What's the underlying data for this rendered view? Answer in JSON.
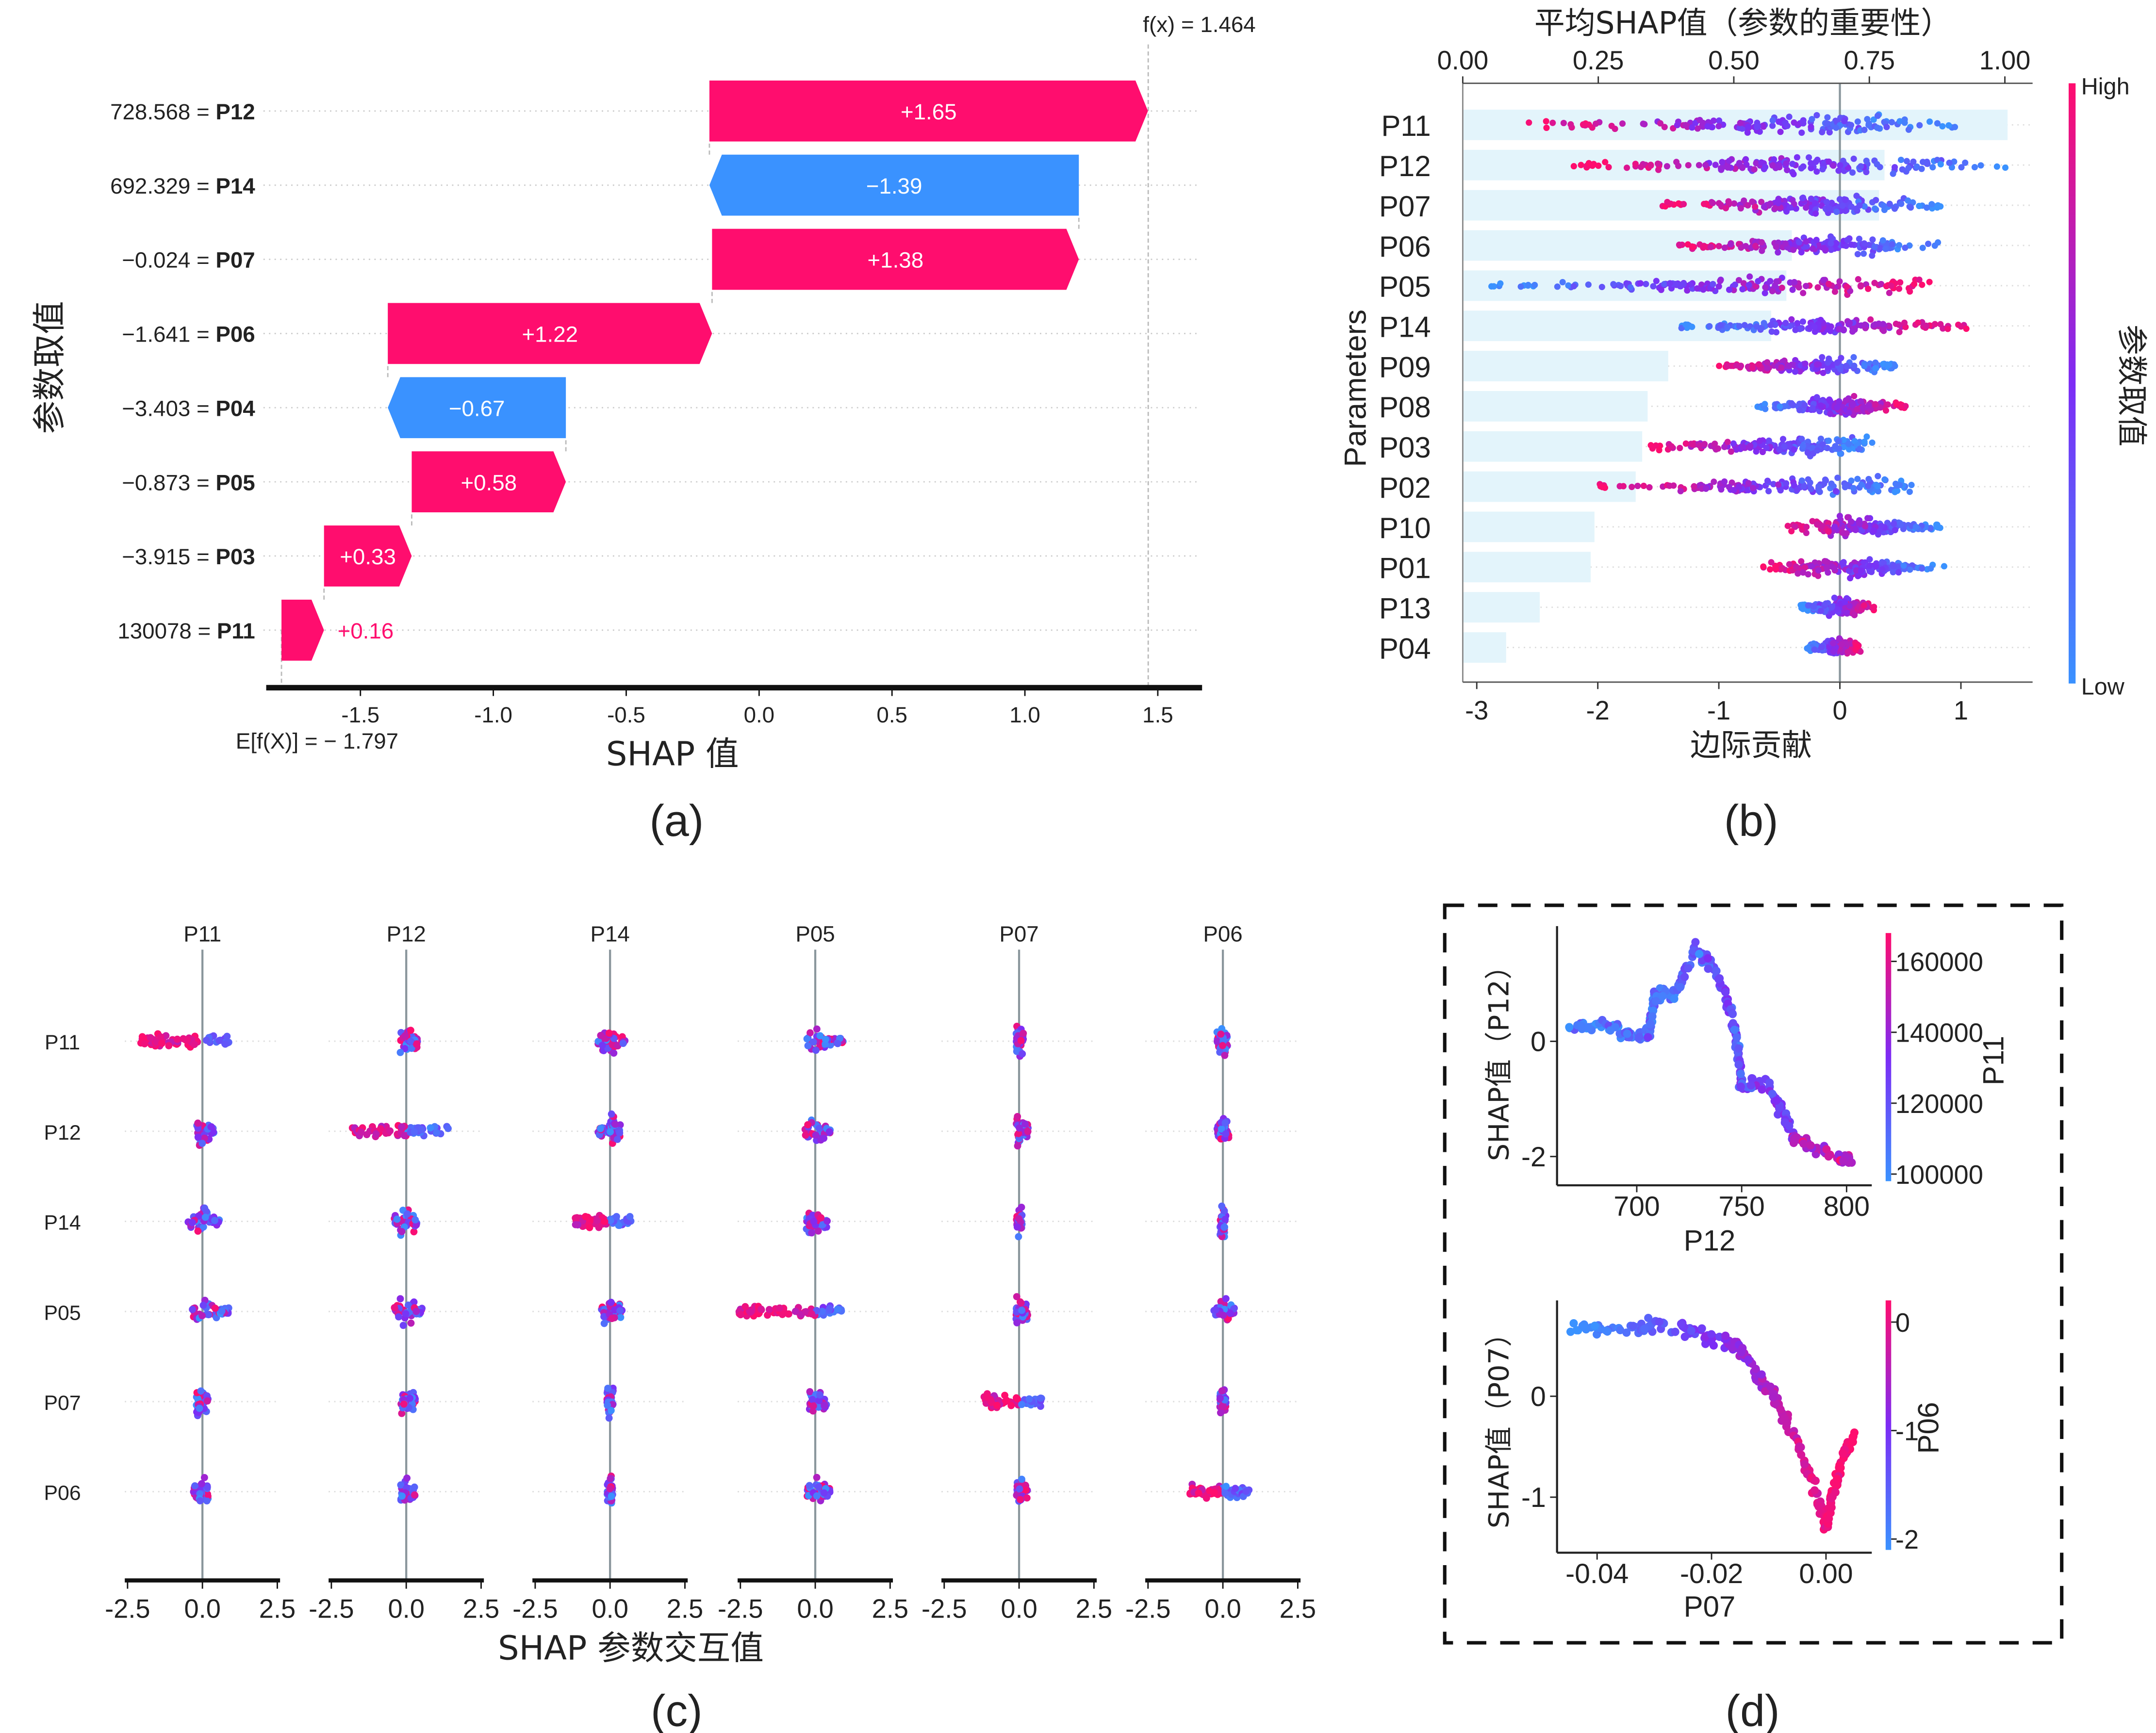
{
  "colors": {
    "positive": "#ff0d6e",
    "negative": "#3a92ff",
    "mid": "#7d2cf5",
    "importance_bar": "#e3f4fb",
    "zero_line": "#8a969c"
  },
  "chart_data": [
    {
      "panel": "(a)",
      "type": "waterfall",
      "ylabel": "参数取值",
      "xlabel": "SHAP 值",
      "x_ticks": [
        "-1.5",
        "-1.0",
        "-0.5",
        "0.0",
        "0.5",
        "1.0",
        "1.5"
      ],
      "xlim": [
        -1.8,
        1.65
      ],
      "base_label": "E[f(X)]  = − 1.797",
      "base_value": -1.797,
      "output_label": "f(x) = 1.464",
      "output_value": 1.464,
      "rows": [
        {
          "feature_value": "728.568 = ",
          "feature": "P12",
          "shap": 1.65,
          "label": "+1.65"
        },
        {
          "feature_value": "692.329 = ",
          "feature": "P14",
          "shap": -1.39,
          "label": "−1.39"
        },
        {
          "feature_value": "−0.024 = ",
          "feature": "P07",
          "shap": 1.38,
          "label": "+1.38"
        },
        {
          "feature_value": "−1.641 = ",
          "feature": "P06",
          "shap": 1.22,
          "label": "+1.22"
        },
        {
          "feature_value": "−3.403 = ",
          "feature": "P04",
          "shap": -0.67,
          "label": "−0.67"
        },
        {
          "feature_value": "−0.873 = ",
          "feature": "P05",
          "shap": 0.58,
          "label": "+0.58"
        },
        {
          "feature_value": "−3.915 = ",
          "feature": "P03",
          "shap": 0.33,
          "label": "+0.33"
        },
        {
          "feature_value": "130078 = ",
          "feature": "P11",
          "shap": 0.16,
          "label": "+0.16"
        }
      ]
    },
    {
      "panel": "(b)",
      "type": "beeswarm+bar",
      "top_title": "平均SHAP值（参数的重要性）",
      "top_ticks": [
        "0.00",
        "0.25",
        "0.50",
        "0.75",
        "1.00"
      ],
      "top_xlim": [
        0,
        1.05
      ],
      "xlabel": "边际贡献",
      "bottom_ticks": [
        "-3",
        "-2",
        "-1",
        "0",
        "1"
      ],
      "bottom_xlim": [
        -3.1,
        1.6
      ],
      "ylabel": "Parameters",
      "colorbar": {
        "high": "High",
        "low": "Low",
        "label": "参数取值"
      },
      "rows": [
        {
          "feature": "P11",
          "mean_abs_shap": 1.005,
          "shap_range": [
            -2.57,
            0.95
          ],
          "high_side": "left"
        },
        {
          "feature": "P12",
          "mean_abs_shap": 0.778,
          "shap_range": [
            -2.22,
            1.39
          ],
          "high_side": "left"
        },
        {
          "feature": "P07",
          "mean_abs_shap": 0.768,
          "shap_range": [
            -1.49,
            0.85
          ],
          "high_side": "left"
        },
        {
          "feature": "P06",
          "mean_abs_shap": 0.607,
          "shap_range": [
            -1.33,
            0.81
          ],
          "high_side": "left"
        },
        {
          "feature": "P05",
          "mean_abs_shap": 0.597,
          "shap_range": [
            -2.9,
            0.74
          ],
          "high_side": "right"
        },
        {
          "feature": "P14",
          "mean_abs_shap": 0.569,
          "shap_range": [
            -1.31,
            1.06
          ],
          "high_side": "right"
        },
        {
          "feature": "P09",
          "mean_abs_shap": 0.379,
          "shap_range": [
            -1.0,
            0.47
          ],
          "high_side": "left"
        },
        {
          "feature": "P08",
          "mean_abs_shap": 0.341,
          "shap_range": [
            -0.7,
            0.58
          ],
          "high_side": "right"
        },
        {
          "feature": "P03",
          "mean_abs_shap": 0.331,
          "shap_range": [
            -1.61,
            0.29
          ],
          "high_side": "left"
        },
        {
          "feature": "P02",
          "mean_abs_shap": 0.319,
          "shap_range": [
            -2.0,
            0.63
          ],
          "high_side": "left"
        },
        {
          "feature": "P10",
          "mean_abs_shap": 0.243,
          "shap_range": [
            -0.44,
            0.87
          ],
          "high_side": "left"
        },
        {
          "feature": "P01",
          "mean_abs_shap": 0.236,
          "shap_range": [
            -0.64,
            0.89
          ],
          "high_side": "left"
        },
        {
          "feature": "P13",
          "mean_abs_shap": 0.142,
          "shap_range": [
            -0.33,
            0.29
          ],
          "high_side": "right"
        },
        {
          "feature": "P04",
          "mean_abs_shap": 0.08,
          "shap_range": [
            -0.28,
            0.17
          ],
          "high_side": "right"
        }
      ]
    },
    {
      "panel": "(c)",
      "type": "interaction-beeswarm-grid",
      "xlabel": "SHAP 参数交互值",
      "x_ticks": [
        "-2.5",
        "0.0",
        "2.5"
      ],
      "xlim": [
        -2.6,
        2.6
      ],
      "columns": [
        "P11",
        "P12",
        "P14",
        "P05",
        "P07",
        "P06"
      ],
      "rows": [
        "P11",
        "P12",
        "P14",
        "P05",
        "P07",
        "P06"
      ],
      "cell_ranges": [
        [
          [
            -2.1,
            0.9
          ],
          [
            -0.2,
            0.4
          ],
          [
            -0.4,
            0.5
          ],
          [
            -0.3,
            1.0
          ],
          [
            -0.1,
            0.15
          ],
          [
            -0.2,
            0.15
          ]
        ],
        [
          [
            -0.2,
            0.4
          ],
          [
            -1.8,
            1.4
          ],
          [
            -0.4,
            0.4
          ],
          [
            -0.4,
            0.5
          ],
          [
            -0.1,
            0.3
          ],
          [
            -0.2,
            0.2
          ]
        ],
        [
          [
            -0.5,
            0.6
          ],
          [
            -0.4,
            0.4
          ],
          [
            -1.2,
            0.7
          ],
          [
            -0.3,
            0.4
          ],
          [
            -0.1,
            0.1
          ],
          [
            -0.1,
            0.1
          ]
        ],
        [
          [
            -0.4,
            1.0
          ],
          [
            -0.4,
            0.6
          ],
          [
            -0.3,
            0.4
          ],
          [
            -2.6,
            0.9
          ],
          [
            -0.1,
            0.3
          ],
          [
            -0.3,
            0.4
          ]
        ],
        [
          [
            -0.2,
            0.2
          ],
          [
            -0.2,
            0.3
          ],
          [
            -0.1,
            0.1
          ],
          [
            -0.2,
            0.4
          ],
          [
            -1.2,
            0.8
          ],
          [
            -0.1,
            0.1
          ]
        ],
        [
          [
            -0.3,
            0.2
          ],
          [
            -0.2,
            0.3
          ],
          [
            -0.1,
            0.1
          ],
          [
            -0.3,
            0.5
          ],
          [
            -0.1,
            0.3
          ],
          [
            -1.1,
            0.9
          ]
        ]
      ]
    },
    {
      "panel": "(d)",
      "type": "scatter",
      "xlabel": "P12",
      "ylabel": "SHAP值（P12）",
      "x_ticks": [
        "700",
        "750",
        "800"
      ],
      "x_tick_values": [
        700,
        750,
        800
      ],
      "xlim": [
        662,
        812
      ],
      "y_ticks": [
        "0",
        "-2"
      ],
      "y_tick_values": [
        0,
        -2
      ],
      "ylim": [
        -2.5,
        2.0
      ],
      "colorbar": {
        "label": "P11",
        "ticks": [
          "160000",
          "140000",
          "120000",
          "100000"
        ],
        "tick_values": [
          160000,
          140000,
          120000,
          100000
        ],
        "range": [
          98000,
          168000
        ]
      },
      "trend": [
        [
          668,
          0.25
        ],
        [
          685,
          0.25
        ],
        [
          700,
          0.1
        ],
        [
          706,
          0.15
        ],
        [
          708,
          0.8
        ],
        [
          718,
          0.8
        ],
        [
          728,
          1.6
        ],
        [
          738,
          1.2
        ],
        [
          745,
          0.5
        ],
        [
          748,
          0.0
        ],
        [
          750,
          -0.8
        ],
        [
          762,
          -0.7
        ],
        [
          770,
          -1.3
        ],
        [
          776,
          -1.7
        ],
        [
          790,
          -1.95
        ],
        [
          802,
          -2.05
        ]
      ]
    },
    {
      "panel": "(d)",
      "type": "scatter",
      "xlabel": "P07",
      "ylabel": "SHAP值（P07）",
      "x_ticks": [
        "-0.04",
        "-0.02",
        "0.00"
      ],
      "x_tick_values": [
        -0.04,
        -0.02,
        0.0
      ],
      "xlim": [
        -0.047,
        0.008
      ],
      "y_ticks": [
        "0",
        "-1"
      ],
      "y_tick_values": [
        0,
        -1
      ],
      "ylim": [
        -1.55,
        0.95
      ],
      "colorbar": {
        "label": "P06",
        "ticks": [
          "0",
          "-1",
          "-2"
        ],
        "tick_values": [
          0,
          -1,
          -2
        ],
        "range": [
          -2.1,
          0.2
        ]
      },
      "trend": [
        [
          -0.045,
          0.65
        ],
        [
          -0.035,
          0.66
        ],
        [
          -0.027,
          0.72
        ],
        [
          -0.02,
          0.58
        ],
        [
          -0.015,
          0.5
        ],
        [
          -0.012,
          0.2
        ],
        [
          -0.009,
          0.0
        ],
        [
          -0.005,
          -0.45
        ],
        [
          -0.002,
          -0.9
        ],
        [
          0.0,
          -1.3
        ],
        [
          0.001,
          -1.0
        ],
        [
          0.003,
          -0.6
        ],
        [
          0.005,
          -0.4
        ]
      ]
    }
  ]
}
